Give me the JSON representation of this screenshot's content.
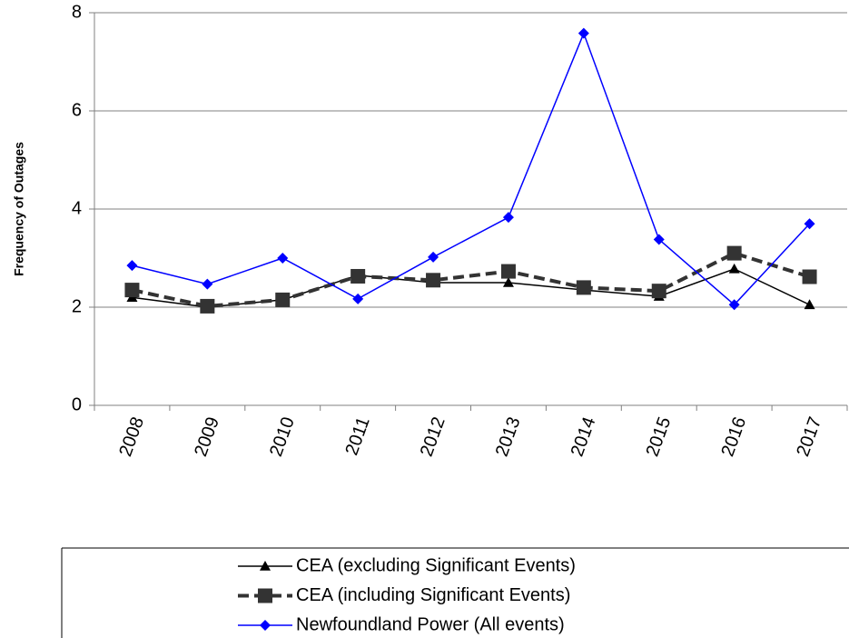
{
  "chart_data": {
    "type": "line",
    "y_label": "Frequency of Outages",
    "categories": [
      "2008",
      "2009",
      "2010",
      "2011",
      "2012",
      "2013",
      "2014",
      "2015",
      "2016",
      "2017"
    ],
    "series": [
      {
        "name": "CEA (excluding Significant Events)",
        "color": "#000000",
        "marker": "triangle",
        "dashed": false,
        "values": [
          2.2,
          2.0,
          2.15,
          2.65,
          2.5,
          2.5,
          2.35,
          2.22,
          2.78,
          2.05
        ]
      },
      {
        "name": "CEA (including Significant Events)",
        "color": "#333333",
        "marker": "square",
        "dashed": true,
        "values": [
          2.35,
          2.02,
          2.15,
          2.63,
          2.55,
          2.73,
          2.4,
          2.33,
          3.1,
          2.62
        ]
      },
      {
        "name": "Newfoundland Power (All events)",
        "color": "#0000ff",
        "marker": "diamond",
        "dashed": false,
        "values": [
          2.85,
          2.47,
          3.0,
          2.17,
          3.02,
          3.83,
          7.58,
          3.38,
          2.05,
          3.7
        ]
      }
    ],
    "ylim": [
      0,
      8
    ],
    "yticks": [
      0,
      2,
      4,
      6,
      8
    ],
    "grid": true,
    "legend": "bottom"
  }
}
